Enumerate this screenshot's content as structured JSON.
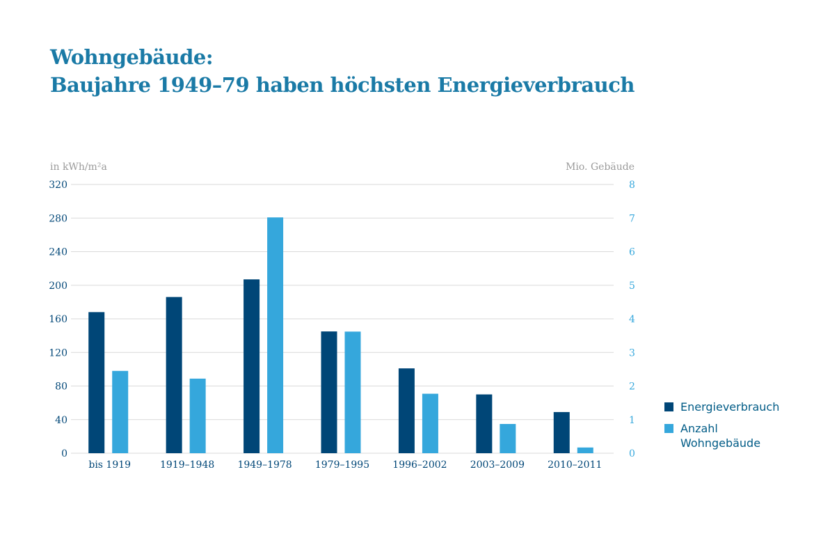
{
  "title": {
    "line1": "Wohngebäude:",
    "line2": "Baujahre 1949–79 haben höchsten Energieverbrauch"
  },
  "colors": {
    "title": "#1a7aa6",
    "energy": "#004677",
    "buildings": "#35a7dc",
    "grid": "#d9d9d9",
    "axis_unit": "#9a9a9a"
  },
  "chart_data": {
    "type": "bar",
    "categories": [
      "bis 1919",
      "1919–1948",
      "1949–1978",
      "1979–1995",
      "1996–2002",
      "2003–2009",
      "2010–2011"
    ],
    "series": [
      {
        "name": "Energieverbrauch",
        "axis": "left",
        "values": [
          168,
          186,
          207,
          145,
          101,
          70,
          49
        ]
      },
      {
        "name": "Anzahl Wohngebäude",
        "axis": "right",
        "values": [
          2.45,
          2.22,
          7.02,
          3.62,
          1.77,
          0.87,
          0.17
        ]
      }
    ],
    "left_axis": {
      "label": "in kWh/m²a",
      "range": [
        0,
        320
      ],
      "ticks": [
        "320",
        "280",
        "240",
        "200",
        "160",
        "120",
        "80",
        "40",
        "0"
      ]
    },
    "right_axis": {
      "label": "Mio. Gebäude",
      "range": [
        0,
        8
      ],
      "ticks": [
        "8",
        "7",
        "6",
        "5",
        "4",
        "3",
        "2",
        "1",
        "0"
      ]
    },
    "grid": true,
    "legend": {
      "position": "right",
      "items": [
        "Energieverbrauch",
        "Anzahl Wohngebäude"
      ]
    }
  }
}
